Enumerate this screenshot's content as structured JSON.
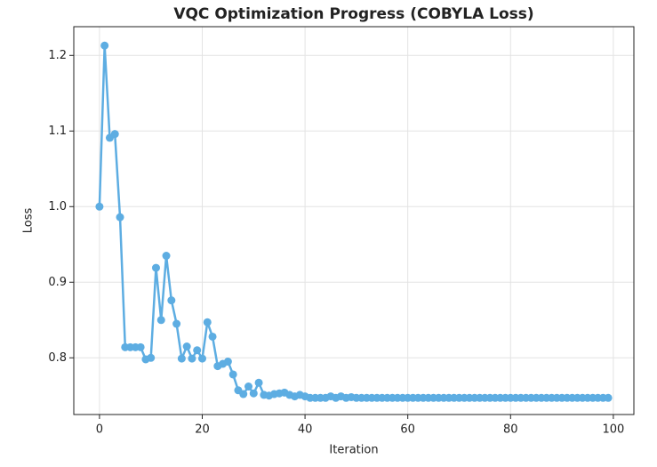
{
  "chart_data": {
    "type": "line",
    "title": "VQC Optimization Progress (COBYLA Loss)",
    "x_label": "Iteration",
    "y_label": "Loss",
    "x": [
      0,
      1,
      2,
      3,
      4,
      5,
      6,
      7,
      8,
      9,
      10,
      11,
      12,
      13,
      14,
      15,
      16,
      17,
      18,
      19,
      20,
      21,
      22,
      23,
      24,
      25,
      26,
      27,
      28,
      29,
      30,
      31,
      32,
      33,
      34,
      35,
      36,
      37,
      38,
      39,
      40,
      41,
      42,
      43,
      44,
      45,
      46,
      47,
      48,
      49,
      50,
      51,
      52,
      53,
      54,
      55,
      56,
      57,
      58,
      59,
      60,
      61,
      62,
      63,
      64,
      65,
      66,
      67,
      68,
      69,
      70,
      71,
      72,
      73,
      74,
      75,
      76,
      77,
      78,
      79,
      80,
      81,
      82,
      83,
      84,
      85,
      86,
      87,
      88,
      89,
      90,
      91,
      92,
      93,
      94,
      95,
      96,
      97,
      98,
      99
    ],
    "series": [
      {
        "name": "Loss",
        "color": "#5dade2",
        "values": [
          1.0,
          1.213,
          1.091,
          1.096,
          0.986,
          0.814,
          0.814,
          0.814,
          0.814,
          0.798,
          0.8,
          0.919,
          0.85,
          0.935,
          0.876,
          0.845,
          0.799,
          0.815,
          0.799,
          0.81,
          0.799,
          0.847,
          0.828,
          0.789,
          0.792,
          0.795,
          0.778,
          0.757,
          0.752,
          0.762,
          0.753,
          0.767,
          0.751,
          0.75,
          0.752,
          0.753,
          0.754,
          0.751,
          0.749,
          0.751,
          0.749,
          0.747,
          0.747,
          0.747,
          0.747,
          0.749,
          0.747,
          0.749,
          0.747,
          0.748,
          0.747,
          0.747,
          0.747,
          0.747,
          0.747,
          0.747,
          0.747,
          0.747,
          0.747,
          0.747,
          0.747,
          0.747,
          0.747,
          0.747,
          0.747,
          0.747,
          0.747,
          0.747,
          0.747,
          0.747,
          0.747,
          0.747,
          0.747,
          0.747,
          0.747,
          0.747,
          0.747,
          0.747,
          0.747,
          0.747,
          0.747,
          0.747,
          0.747,
          0.747,
          0.747,
          0.747,
          0.747,
          0.747,
          0.747,
          0.747,
          0.747,
          0.747,
          0.747,
          0.747,
          0.747,
          0.747,
          0.747,
          0.747,
          0.747,
          0.747
        ]
      }
    ],
    "xlim": [
      -5,
      104
    ],
    "ylim": [
      0.725,
      1.238
    ],
    "xticks": [
      0,
      20,
      40,
      60,
      80,
      100
    ],
    "yticks": [
      0.8,
      0.9,
      {
        "value": 1,
        "label": "1.0"
      },
      1.1,
      1.2
    ],
    "grid": true
  }
}
